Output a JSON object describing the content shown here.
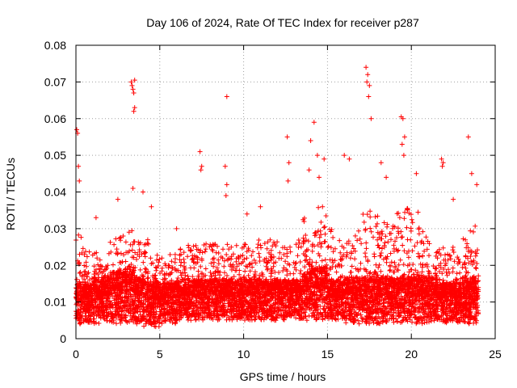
{
  "chart_data": {
    "type": "scatter",
    "title": "Day 106 of 2024, Rate Of TEC Index for receiver p287",
    "xlabel": "GPS time / hours",
    "ylabel": "ROTI / TECUs",
    "xlim": [
      0,
      25
    ],
    "ylim": [
      0,
      0.08
    ],
    "x_ticks": [
      0,
      5,
      10,
      15,
      20,
      25
    ],
    "x_tick_labels": [
      "0",
      "5",
      "10",
      "15",
      "20",
      "25"
    ],
    "y_ticks": [
      0,
      0.01,
      0.02,
      0.03,
      0.04,
      0.05,
      0.06,
      0.07,
      0.08
    ],
    "y_tick_labels": [
      "0",
      "0.01",
      "0.02",
      "0.03",
      "0.04",
      "0.05",
      "0.06",
      "0.07",
      "0.08"
    ],
    "grid": true,
    "marker": "plus",
    "series_color": "#ff0000",
    "outliers": {
      "x": [
        0.05,
        0.1,
        0.15,
        0.2,
        3.3,
        3.35,
        3.4,
        3.45,
        3.5,
        3.45,
        3.5,
        3.4,
        9.0,
        7.4,
        7.5,
        7.45,
        8.9,
        9.0,
        8.95,
        12.6,
        12.7,
        12.65,
        14.0,
        14.2,
        14.4,
        14.8,
        13.9,
        14.5,
        17.3,
        17.4,
        17.5,
        17.35,
        17.45,
        17.6,
        19.4,
        19.5,
        19.6,
        19.45,
        19.55,
        21.8,
        21.9,
        21.85,
        23.4,
        23.6,
        23.9,
        1.2,
        2.5,
        4.0,
        4.5,
        6.0,
        11.0,
        16.0,
        16.3,
        18.2,
        18.5,
        20.3,
        22.5,
        10.2
      ],
      "y": [
        0.057,
        0.056,
        0.047,
        0.043,
        0.07,
        0.069,
        0.068,
        0.067,
        0.0705,
        0.062,
        0.063,
        0.041,
        0.066,
        0.051,
        0.047,
        0.046,
        0.047,
        0.042,
        0.039,
        0.055,
        0.048,
        0.043,
        0.054,
        0.059,
        0.05,
        0.049,
        0.046,
        0.044,
        0.074,
        0.072,
        0.069,
        0.07,
        0.066,
        0.06,
        0.0605,
        0.06,
        0.055,
        0.053,
        0.05,
        0.049,
        0.048,
        0.047,
        0.055,
        0.045,
        0.042,
        0.033,
        0.038,
        0.04,
        0.036,
        0.03,
        0.036,
        0.05,
        0.049,
        0.048,
        0.044,
        0.045,
        0.038,
        0.034
      ]
    },
    "density_profile": {
      "x": [
        0,
        0.5,
        1,
        1.5,
        2,
        2.5,
        3,
        3.5,
        4,
        4.5,
        5,
        5.5,
        6,
        6.5,
        7,
        7.5,
        8,
        8.5,
        9,
        9.5,
        10,
        10.5,
        11,
        11.5,
        12,
        12.5,
        13,
        13.5,
        14,
        14.5,
        15,
        15.5,
        16,
        16.5,
        17,
        17.5,
        18,
        18.5,
        19,
        19.5,
        20,
        20.5,
        21,
        21.5,
        22,
        22.5,
        23,
        23.5,
        24
      ],
      "y_median": [
        0.011,
        0.011,
        0.012,
        0.012,
        0.013,
        0.013,
        0.013,
        0.012,
        0.011,
        0.011,
        0.011,
        0.011,
        0.012,
        0.012,
        0.012,
        0.012,
        0.012,
        0.012,
        0.012,
        0.012,
        0.012,
        0.012,
        0.012,
        0.012,
        0.012,
        0.012,
        0.012,
        0.013,
        0.014,
        0.014,
        0.012,
        0.012,
        0.012,
        0.012,
        0.012,
        0.013,
        0.012,
        0.012,
        0.012,
        0.012,
        0.012,
        0.012,
        0.012,
        0.011,
        0.011,
        0.011,
        0.012,
        0.012,
        0.011
      ],
      "y_upper": [
        0.03,
        0.024,
        0.024,
        0.025,
        0.028,
        0.029,
        0.03,
        0.028,
        0.028,
        0.024,
        0.022,
        0.023,
        0.025,
        0.026,
        0.026,
        0.026,
        0.026,
        0.025,
        0.026,
        0.026,
        0.026,
        0.027,
        0.027,
        0.027,
        0.025,
        0.027,
        0.028,
        0.033,
        0.036,
        0.036,
        0.03,
        0.028,
        0.03,
        0.03,
        0.034,
        0.035,
        0.032,
        0.033,
        0.036,
        0.038,
        0.035,
        0.03,
        0.027,
        0.025,
        0.025,
        0.025,
        0.03,
        0.032,
        0.028
      ],
      "y_lower": [
        0.004,
        0.004,
        0.004,
        0.004,
        0.004,
        0.004,
        0.004,
        0.004,
        0.003,
        0.003,
        0.004,
        0.004,
        0.005,
        0.005,
        0.005,
        0.005,
        0.005,
        0.005,
        0.005,
        0.005,
        0.005,
        0.005,
        0.005,
        0.005,
        0.005,
        0.005,
        0.005,
        0.005,
        0.005,
        0.005,
        0.005,
        0.005,
        0.004,
        0.004,
        0.004,
        0.004,
        0.004,
        0.004,
        0.004,
        0.004,
        0.004,
        0.004,
        0.004,
        0.004,
        0.004,
        0.004,
        0.004,
        0.004,
        0.004
      ]
    },
    "points_per_half_hour": 150
  }
}
